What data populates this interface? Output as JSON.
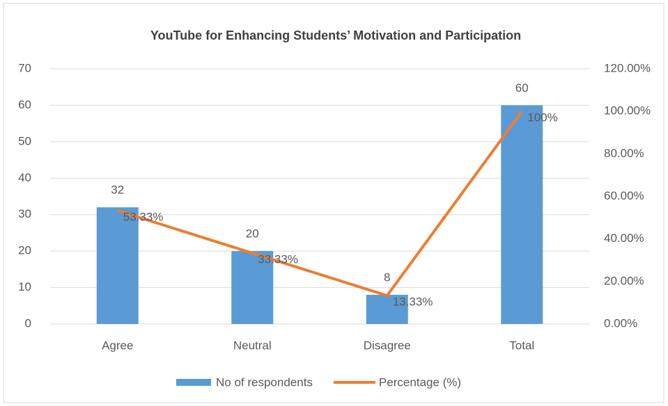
{
  "chart_data": {
    "type": "bar",
    "title": "YouTube for Enhancing Students’ Motivation and Participation",
    "categories": [
      "Agree",
      "Neutral",
      "Disagree",
      "Total"
    ],
    "series": [
      {
        "name": "No of respondents",
        "type": "bar",
        "color": "#5b9bd5",
        "values": [
          32,
          20,
          8,
          60
        ]
      },
      {
        "name": "Percentage (%)",
        "type": "line",
        "axis": "y2",
        "color": "#ed7d31",
        "values": [
          53.33,
          33.33,
          13.33,
          100
        ],
        "value_labels": [
          "53.33%",
          "33.33%",
          "13.33%",
          "100%"
        ]
      }
    ],
    "ylim": [
      0,
      70
    ],
    "yticks": [
      0,
      10,
      20,
      30,
      40,
      50,
      60,
      70
    ],
    "y2lim": [
      0,
      120
    ],
    "y2ticks": [
      {
        "value": 0,
        "label": "0.00%"
      },
      {
        "value": 20,
        "label": "20.00%"
      },
      {
        "value": 40,
        "label": "40.00%"
      },
      {
        "value": 60,
        "label": "60.00%"
      },
      {
        "value": 80,
        "label": "80.00%"
      },
      {
        "value": 100,
        "label": "100.00%"
      },
      {
        "value": 120,
        "label": "120.00%"
      }
    ],
    "grid": true,
    "legend": "bottom"
  }
}
